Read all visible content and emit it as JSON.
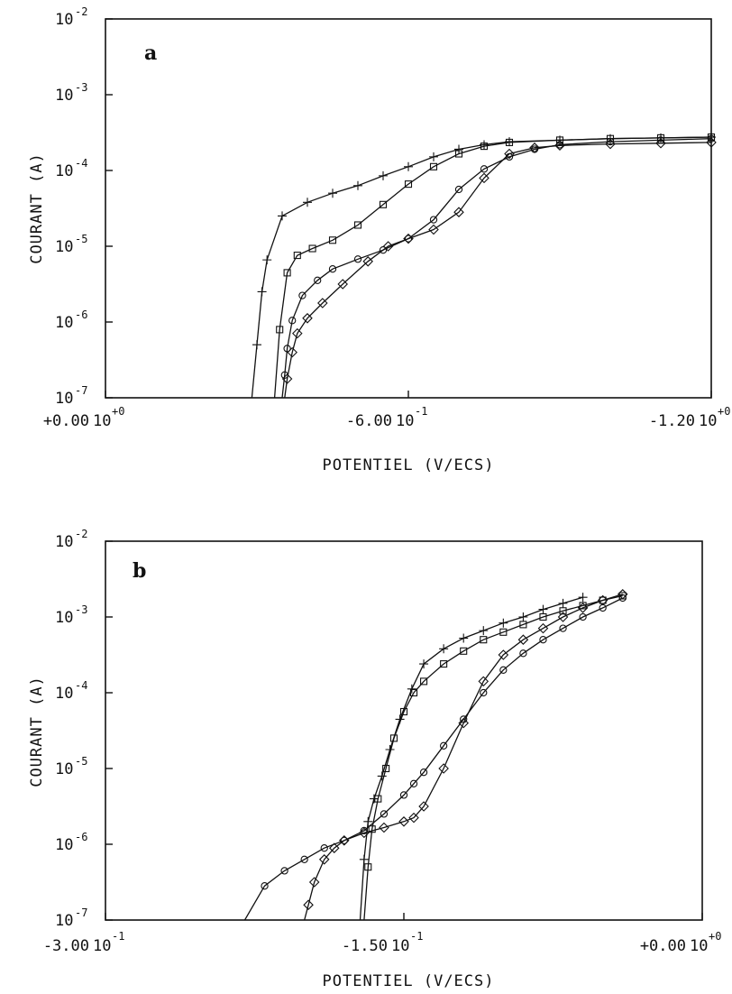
{
  "chart_data": [
    {
      "panel": "a",
      "type": "line",
      "xlabel": "POTENTIEL (V/ECS)",
      "ylabel": "COURANT (A)",
      "xlim": [
        0,
        -1.2
      ],
      "ylim_log10": [
        -7,
        -2
      ],
      "y_scale": "log",
      "x_ticks": [
        {
          "value": 0,
          "mantissa": "+0.00",
          "exp": "+0"
        },
        {
          "value": -0.6,
          "mantissa": "-6.00",
          "exp": "-1"
        },
        {
          "value": -1.2,
          "mantissa": "-1.20",
          "exp": "+0"
        }
      ],
      "y_ticks": [
        {
          "log": -2,
          "label": "10",
          "exp": "-2"
        },
        {
          "log": -3,
          "label": "10",
          "exp": "-3"
        },
        {
          "log": -4,
          "label": "10",
          "exp": "-4"
        },
        {
          "log": -5,
          "label": "10",
          "exp": "-5"
        },
        {
          "log": -6,
          "label": "10",
          "exp": "-6"
        },
        {
          "log": -7,
          "label": "10",
          "exp": "-7"
        }
      ],
      "series": [
        {
          "marker": "plus",
          "x": [
            -0.29,
            -0.3,
            -0.31,
            -0.32,
            -0.35,
            -0.4,
            -0.45,
            -0.5,
            -0.55,
            -0.6,
            -0.65,
            -0.7,
            -0.75,
            -0.8,
            -0.9,
            -1.0,
            -1.1,
            -1.2
          ],
          "y_log10": [
            -7.0,
            -6.3,
            -5.6,
            -5.18,
            -4.6,
            -4.42,
            -4.3,
            -4.2,
            -4.07,
            -3.95,
            -3.82,
            -3.72,
            -3.66,
            -3.62,
            -3.6,
            -3.58,
            -3.57,
            -3.56
          ]
        },
        {
          "marker": "square",
          "x": [
            -0.335,
            -0.345,
            -0.36,
            -0.38,
            -0.41,
            -0.45,
            -0.5,
            -0.55,
            -0.6,
            -0.65,
            -0.7,
            -0.75,
            -0.8,
            -0.9,
            -1.0,
            -1.1,
            -1.2
          ],
          "y_log10": [
            -7.0,
            -6.1,
            -5.35,
            -5.12,
            -5.03,
            -4.92,
            -4.72,
            -4.45,
            -4.18,
            -3.95,
            -3.78,
            -3.68,
            -3.63,
            -3.6,
            -3.58,
            -3.57,
            -3.56
          ]
        },
        {
          "marker": "circle",
          "x": [
            -0.35,
            -0.355,
            -0.36,
            -0.37,
            -0.39,
            -0.42,
            -0.45,
            -0.5,
            -0.55,
            -0.6,
            -0.65,
            -0.7,
            -0.75,
            -0.8,
            -0.85,
            -0.9,
            -1.0,
            -1.1,
            -1.2
          ],
          "y_log10": [
            -7.0,
            -6.7,
            -6.35,
            -5.98,
            -5.65,
            -5.45,
            -5.3,
            -5.17,
            -5.05,
            -4.9,
            -4.65,
            -4.25,
            -3.98,
            -3.82,
            -3.72,
            -3.66,
            -3.62,
            -3.6,
            -3.58
          ]
        },
        {
          "marker": "diamond",
          "x": [
            -0.355,
            -0.36,
            -0.37,
            -0.38,
            -0.4,
            -0.43,
            -0.47,
            -0.52,
            -0.56,
            -0.6,
            -0.65,
            -0.7,
            -0.75,
            -0.8,
            -0.85,
            -0.9,
            -1.0,
            -1.1,
            -1.2
          ],
          "y_log10": [
            -7.0,
            -6.75,
            -6.4,
            -6.15,
            -5.95,
            -5.75,
            -5.5,
            -5.2,
            -5.0,
            -4.9,
            -4.78,
            -4.55,
            -4.1,
            -3.78,
            -3.7,
            -3.67,
            -3.65,
            -3.64,
            -3.63
          ]
        }
      ]
    },
    {
      "panel": "b",
      "type": "line",
      "xlabel": "POTENTIEL (V/ECS)",
      "ylabel": "COURANT (A)",
      "xlim": [
        -0.3,
        0
      ],
      "ylim_log10": [
        -7,
        -2
      ],
      "y_scale": "log",
      "x_ticks": [
        {
          "value": -0.3,
          "mantissa": "-3.00",
          "exp": "-1"
        },
        {
          "value": -0.15,
          "mantissa": "-1.50",
          "exp": "-1"
        },
        {
          "value": 0,
          "mantissa": "+0.00",
          "exp": "+0"
        }
      ],
      "y_ticks": [
        {
          "log": -2,
          "label": "10",
          "exp": "-2"
        },
        {
          "log": -3,
          "label": "10",
          "exp": "-3"
        },
        {
          "log": -4,
          "label": "10",
          "exp": "-4"
        },
        {
          "log": -5,
          "label": "10",
          "exp": "-5"
        },
        {
          "log": -6,
          "label": "10",
          "exp": "-6"
        },
        {
          "log": -7,
          "label": "10",
          "exp": "-7"
        }
      ],
      "series": [
        {
          "marker": "plus",
          "x": [
            -0.172,
            -0.17,
            -0.168,
            -0.165,
            -0.161,
            -0.157,
            -0.152,
            -0.146,
            -0.14,
            -0.13,
            -0.12,
            -0.11,
            -0.1,
            -0.09,
            -0.08,
            -0.07,
            -0.06
          ],
          "y_log10": [
            -7.0,
            -6.2,
            -5.7,
            -5.4,
            -5.1,
            -4.75,
            -4.35,
            -3.95,
            -3.62,
            -3.42,
            -3.28,
            -3.18,
            -3.08,
            -3.0,
            -2.9,
            -2.82,
            -2.74
          ]
        },
        {
          "marker": "square",
          "x": [
            -0.17,
            -0.168,
            -0.166,
            -0.163,
            -0.159,
            -0.155,
            -0.15,
            -0.145,
            -0.14,
            -0.13,
            -0.12,
            -0.11,
            -0.1,
            -0.09,
            -0.08,
            -0.07,
            -0.06,
            -0.05,
            -0.04
          ],
          "y_log10": [
            -7.0,
            -6.3,
            -5.8,
            -5.4,
            -5.0,
            -4.6,
            -4.25,
            -4.0,
            -3.85,
            -3.62,
            -3.45,
            -3.3,
            -3.2,
            -3.1,
            -3.0,
            -2.92,
            -2.85,
            -2.78,
            -2.72
          ]
        },
        {
          "marker": "circle",
          "x": [
            -0.23,
            -0.22,
            -0.21,
            -0.2,
            -0.19,
            -0.18,
            -0.17,
            -0.16,
            -0.15,
            -0.145,
            -0.14,
            -0.13,
            -0.12,
            -0.11,
            -0.1,
            -0.09,
            -0.08,
            -0.07,
            -0.06,
            -0.05,
            -0.04
          ],
          "y_log10": [
            -7.0,
            -6.55,
            -6.35,
            -6.2,
            -6.05,
            -5.95,
            -5.82,
            -5.6,
            -5.35,
            -5.2,
            -5.05,
            -4.7,
            -4.35,
            -4.0,
            -3.7,
            -3.48,
            -3.3,
            -3.15,
            -3.0,
            -2.88,
            -2.75
          ]
        },
        {
          "marker": "diamond",
          "x": [
            -0.2,
            -0.198,
            -0.195,
            -0.19,
            -0.185,
            -0.18,
            -0.17,
            -0.16,
            -0.15,
            -0.145,
            -0.14,
            -0.13,
            -0.12,
            -0.11,
            -0.1,
            -0.09,
            -0.08,
            -0.07,
            -0.06,
            -0.05,
            -0.04
          ],
          "y_log10": [
            -7.0,
            -6.8,
            -6.5,
            -6.2,
            -6.05,
            -5.95,
            -5.85,
            -5.78,
            -5.7,
            -5.65,
            -5.5,
            -5.0,
            -4.4,
            -3.85,
            -3.5,
            -3.3,
            -3.15,
            -3.0,
            -2.88,
            -2.78,
            -2.7
          ]
        }
      ]
    }
  ]
}
